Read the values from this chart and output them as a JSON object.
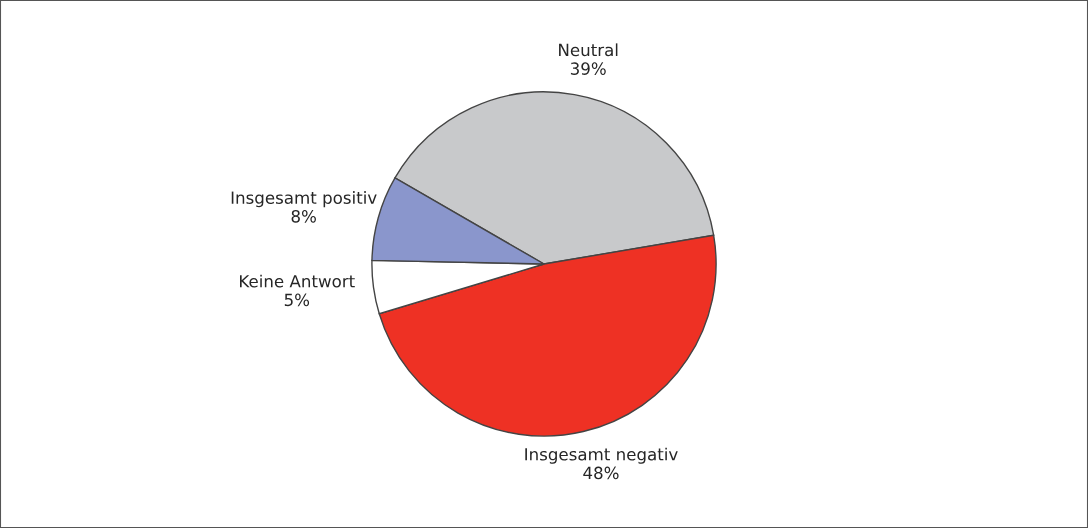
{
  "chart_data": {
    "type": "pie",
    "categories": [
      "Neutral",
      "Insgesamt negativ",
      "Keine Antwort",
      "Insgesamt positiv"
    ],
    "values": [
      39,
      48,
      5,
      8
    ],
    "colors": [
      "#c8c9cb",
      "#ee3124",
      "#ffffff",
      "#8a96cc"
    ],
    "value_labels": [
      "39%",
      "48%",
      "5%",
      "8%"
    ],
    "legend": false
  }
}
